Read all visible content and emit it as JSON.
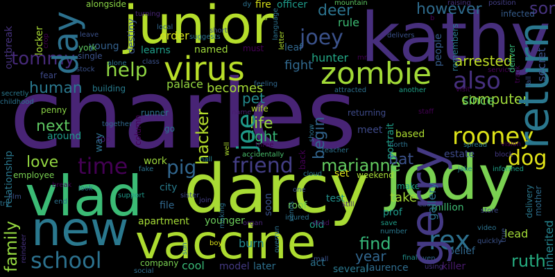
{
  "words": [
    {
      "text": "charles",
      "color": "#482475"
    },
    {
      "text": "kathy",
      "color": "#472f7d"
    },
    {
      "text": "darcy",
      "color": "#a8db34"
    },
    {
      "text": "jody",
      "color": "#7ad151"
    },
    {
      "text": "junior",
      "color": "#b5de2b"
    },
    {
      "text": "vlad",
      "color": "#3bbb75"
    },
    {
      "text": "vaccine",
      "color": "#addc30"
    },
    {
      "text": "new",
      "color": "#2a788e"
    },
    {
      "text": "gerry",
      "color": "#443983"
    },
    {
      "text": "zombie",
      "color": "#a2da37"
    },
    {
      "text": "virus",
      "color": "#b8de29"
    },
    {
      "text": "day",
      "color": "#2c718e"
    },
    {
      "text": "return",
      "color": "#2a778e"
    },
    {
      "text": "rooney",
      "color": "#dde318"
    },
    {
      "text": "also",
      "color": "#46307e"
    },
    {
      "text": "joey",
      "color": "#3b528b"
    },
    {
      "text": "tommy",
      "color": "#472a7a"
    },
    {
      "text": "help",
      "color": "#90d743"
    },
    {
      "text": "friend",
      "color": "#433e85"
    },
    {
      "text": "time",
      "color": "#440154"
    },
    {
      "text": "school",
      "color": "#2c718e"
    },
    {
      "text": "rex",
      "color": "#2d708e"
    },
    {
      "text": "dog",
      "color": "#e2e418"
    },
    {
      "text": "marianne",
      "color": "#63cb5f"
    },
    {
      "text": "pig",
      "color": "#31668e"
    },
    {
      "text": "find",
      "color": "#35b779"
    },
    {
      "text": "ruth",
      "color": "#26ad81"
    },
    {
      "text": "son",
      "color": "#46327e"
    },
    {
      "text": "deer",
      "color": "#2c738e"
    },
    {
      "text": "however",
      "color": "#2f6c8e"
    },
    {
      "text": "human",
      "color": "#2a788e"
    },
    {
      "text": "life",
      "color": "#9bd93c"
    },
    {
      "text": "love",
      "color": "#93d741"
    },
    {
      "text": "next",
      "color": "#5ec962"
    },
    {
      "text": "hacker",
      "color": "#b5de2b"
    },
    {
      "text": "arrested",
      "color": "#c0df25"
    },
    {
      "text": "computer",
      "color": "#9fda3a"
    },
    {
      "text": "family",
      "color": "#95d840"
    },
    {
      "text": "year",
      "color": "#31668e"
    },
    {
      "text": "begin",
      "color": "#32658e"
    },
    {
      "text": "pet",
      "color": "#238a8d"
    },
    {
      "text": "becomes",
      "color": "#a5db36"
    },
    {
      "text": "light",
      "color": "#37b878"
    },
    {
      "text": "bat",
      "color": "#3b528b"
    },
    {
      "text": "take",
      "color": "#a5db36"
    },
    {
      "text": "lead",
      "color": "#a2da37"
    },
    {
      "text": "since",
      "color": "#5ec962"
    },
    {
      "text": "fight",
      "color": "#31688e"
    },
    {
      "text": "joe",
      "color": "#1f9a8a"
    },
    {
      "text": "fire",
      "color": "#d8e219"
    },
    {
      "text": "officer",
      "color": "#1e9b8a"
    },
    {
      "text": "rule",
      "color": "#3dbc74"
    },
    {
      "text": "hunter",
      "color": "#22a785"
    },
    {
      "text": "palace",
      "color": "#95d840"
    },
    {
      "text": "order",
      "color": "#d5e21a"
    },
    {
      "text": "young",
      "color": "#34618d"
    },
    {
      "text": "named",
      "color": "#9fda3a"
    },
    {
      "text": "learns",
      "color": "#1f9e89"
    },
    {
      "text": "york",
      "color": "#5ec962"
    },
    {
      "text": "single",
      "color": "#3b528b"
    },
    {
      "text": "destiny",
      "color": "#39568c"
    },
    {
      "text": "work",
      "color": "#9dd93b"
    },
    {
      "text": "city",
      "color": "#287c8e"
    },
    {
      "text": "file",
      "color": "#31688e"
    },
    {
      "text": "apartment",
      "color": "#a5db36"
    },
    {
      "text": "younger",
      "color": "#6ccd5a"
    },
    {
      "text": "burn",
      "color": "#23898e"
    },
    {
      "text": "model",
      "color": "#443a83"
    },
    {
      "text": "later",
      "color": "#2d708e"
    },
    {
      "text": "cool",
      "color": "#39b977"
    },
    {
      "text": "company",
      "color": "#7ad151"
    },
    {
      "text": "roof",
      "color": "#75d054"
    },
    {
      "text": "old",
      "color": "#1fa188"
    },
    {
      "text": "test",
      "color": "#21918c"
    },
    {
      "text": "make",
      "color": "#1fa188"
    },
    {
      "text": "prof",
      "color": "#1f9a8a"
    },
    {
      "text": "set",
      "color": "#dde318"
    },
    {
      "text": "million",
      "color": "#3fbc73"
    },
    {
      "text": "gallery",
      "color": "#2c728e"
    },
    {
      "text": "laurence",
      "color": "#2f6c8e"
    },
    {
      "text": "belief",
      "color": "#31688e"
    },
    {
      "text": "killer",
      "color": "#481b6d"
    },
    {
      "text": "meet",
      "color": "#3e4a89"
    },
    {
      "text": "based",
      "color": "#addc30"
    },
    {
      "text": "portrait",
      "color": "#1f9e89"
    },
    {
      "text": "estate",
      "color": "#3e4a89"
    },
    {
      "text": "around",
      "color": "#1f9a8a"
    },
    {
      "text": "employee",
      "color": "#7ad151"
    },
    {
      "text": "relationship",
      "color": "#2a788e"
    },
    {
      "text": "penny",
      "color": "#8bd646"
    },
    {
      "text": "soon",
      "color": "#3b528b"
    },
    {
      "text": "runner",
      "color": "#2c728e"
    },
    {
      "text": "wife",
      "color": "#b2dd2d"
    },
    {
      "text": "go",
      "color": "#2c738e"
    },
    {
      "text": "fear",
      "color": "#3e4a89"
    },
    {
      "text": "outbreak",
      "color": "#46327e"
    },
    {
      "text": "locker",
      "color": "#a8db34"
    },
    {
      "text": "alongside",
      "color": "#8bd646"
    },
    {
      "text": "turning",
      "color": "#482475"
    },
    {
      "text": "officer",
      "color": "#1e9b8a"
    },
    {
      "text": "mountain",
      "color": "#5ec962"
    },
    {
      "text": "raising",
      "color": "#46327e"
    },
    {
      "text": "position",
      "color": "#433e85"
    },
    {
      "text": "infected",
      "color": "#365d8d"
    },
    {
      "text": "remembers",
      "color": "#2a788e"
    },
    {
      "text": "deliver",
      "color": "#35b779"
    },
    {
      "text": "service",
      "color": "#440154"
    },
    {
      "text": "secret",
      "color": "#3b528b"
    },
    {
      "text": "people",
      "color": "#365d8d"
    },
    {
      "text": "attracted",
      "color": "#2d708e"
    },
    {
      "text": "another",
      "color": "#1fa188"
    },
    {
      "text": "fall",
      "color": "#3b528b"
    },
    {
      "text": "track",
      "color": "#440154"
    },
    {
      "text": "staff",
      "color": "#440154"
    },
    {
      "text": "spread",
      "color": "#2a788e"
    },
    {
      "text": "block",
      "color": "#443983"
    },
    {
      "text": "jake",
      "color": "#25848e"
    },
    {
      "text": "informed",
      "color": "#1fa188"
    },
    {
      "text": "delivery",
      "color": "#2a788e"
    },
    {
      "text": "mother",
      "color": "#2f6c8e"
    },
    {
      "text": "inherited",
      "color": "#25848e"
    },
    {
      "text": "quickly",
      "color": "#3b528b"
    },
    {
      "text": "high",
      "color": "#2a788e"
    },
    {
      "text": "video",
      "color": "#2c728e"
    },
    {
      "text": "true",
      "color": "#3b528b"
    },
    {
      "text": "using",
      "color": "#46327e"
    },
    {
      "text": "even",
      "color": "#31688e"
    },
    {
      "text": "final",
      "color": "#21918c"
    },
    {
      "text": "save",
      "color": "#1f9e89"
    },
    {
      "text": "cause",
      "color": "#3b528b"
    },
    {
      "text": "store",
      "color": "#3e4a89"
    },
    {
      "text": "number",
      "color": "#2a788e"
    },
    {
      "text": "dead",
      "color": "#471063"
    },
    {
      "text": "overrun",
      "color": "#2c728e"
    },
    {
      "text": "organ",
      "color": "#482475"
    },
    {
      "text": "injured",
      "color": "#2c728e"
    },
    {
      "text": "boy",
      "color": "#dde318"
    },
    {
      "text": "mall",
      "color": "#3b528b"
    },
    {
      "text": "social",
      "color": "#2f6c8e"
    },
    {
      "text": "several",
      "color": "#2a788e"
    },
    {
      "text": "act",
      "color": "#2c728e"
    },
    {
      "text": "one",
      "color": "#3b528b"
    },
    {
      "text": "still",
      "color": "#482475"
    },
    {
      "text": "sends",
      "color": "#2c728e"
    },
    {
      "text": "cloud",
      "color": "#2a788e"
    },
    {
      "text": "weekend",
      "color": "#a5db36"
    },
    {
      "text": "teacher",
      "color": "#2c718e"
    },
    {
      "text": "back",
      "color": "#440154"
    },
    {
      "text": "accidentally",
      "color": "#4ac16d"
    },
    {
      "text": "three",
      "color": "#440154"
    },
    {
      "text": "name",
      "color": "#481b6d"
    },
    {
      "text": "returning",
      "color": "#3e4a89"
    },
    {
      "text": "well",
      "color": "#addc30"
    },
    {
      "text": "feeling",
      "color": "#31688e"
    },
    {
      "text": "column",
      "color": "#440154"
    },
    {
      "text": "building",
      "color": "#287c8e"
    },
    {
      "text": "together",
      "color": "#31688e"
    },
    {
      "text": "top",
      "color": "#481b6d"
    },
    {
      "text": "way",
      "color": "#2c718e"
    },
    {
      "text": "hall",
      "color": "#25848e"
    },
    {
      "text": "making",
      "color": "#2c728e"
    },
    {
      "text": "support",
      "color": "#1f9a8a"
    },
    {
      "text": "sister",
      "color": "#3e4a89"
    },
    {
      "text": "join",
      "color": "#433e85"
    },
    {
      "text": "end",
      "color": "#2c728e"
    },
    {
      "text": "film",
      "color": "#3b528b"
    },
    {
      "text": "try",
      "color": "#2c728e"
    },
    {
      "text": "break",
      "color": "#440154"
    },
    {
      "text": "look",
      "color": "#2c728e"
    },
    {
      "text": "fake",
      "color": "#2c728e"
    },
    {
      "text": "sun",
      "color": "#2c728e"
    },
    {
      "text": "reindeer",
      "color": "#46327e"
    },
    {
      "text": "secretly",
      "color": "#2a788e"
    },
    {
      "text": "childhood",
      "color": "#2c728e"
    },
    {
      "text": "stock",
      "color": "#3b528b"
    },
    {
      "text": "alone",
      "color": "#2c728e"
    },
    {
      "text": "class",
      "color": "#3b528b"
    },
    {
      "text": "leave",
      "color": "#3b528b"
    },
    {
      "text": "crop",
      "color": "#440154"
    },
    {
      "text": "local",
      "color": "#31688e"
    },
    {
      "text": "suggests",
      "color": "#2c728e"
    },
    {
      "text": "short",
      "color": "#3b528b"
    },
    {
      "text": "dy",
      "color": "#2c728e"
    },
    {
      "text": "must",
      "color": "#440154"
    },
    {
      "text": "leaf",
      "color": "#31688e"
    },
    {
      "text": "letter",
      "color": "#addc30"
    },
    {
      "text": "us",
      "color": "#a5db36"
    },
    {
      "text": "language",
      "color": "#2c728e"
    },
    {
      "text": "b",
      "color": "#440154"
    },
    {
      "text": "delivers",
      "color": "#3b528b"
    },
    {
      "text": "mr",
      "color": "#440154"
    },
    {
      "text": "show",
      "color": "#2c728e"
    },
    {
      "text": "visit",
      "color": "#440154"
    },
    {
      "text": "north",
      "color": "#2c728e"
    },
    {
      "text": "vision",
      "color": "#440154"
    },
    {
      "text": "run",
      "color": "#2c728e"
    },
    {
      "text": "month",
      "color": "#482475"
    }
  ]
}
